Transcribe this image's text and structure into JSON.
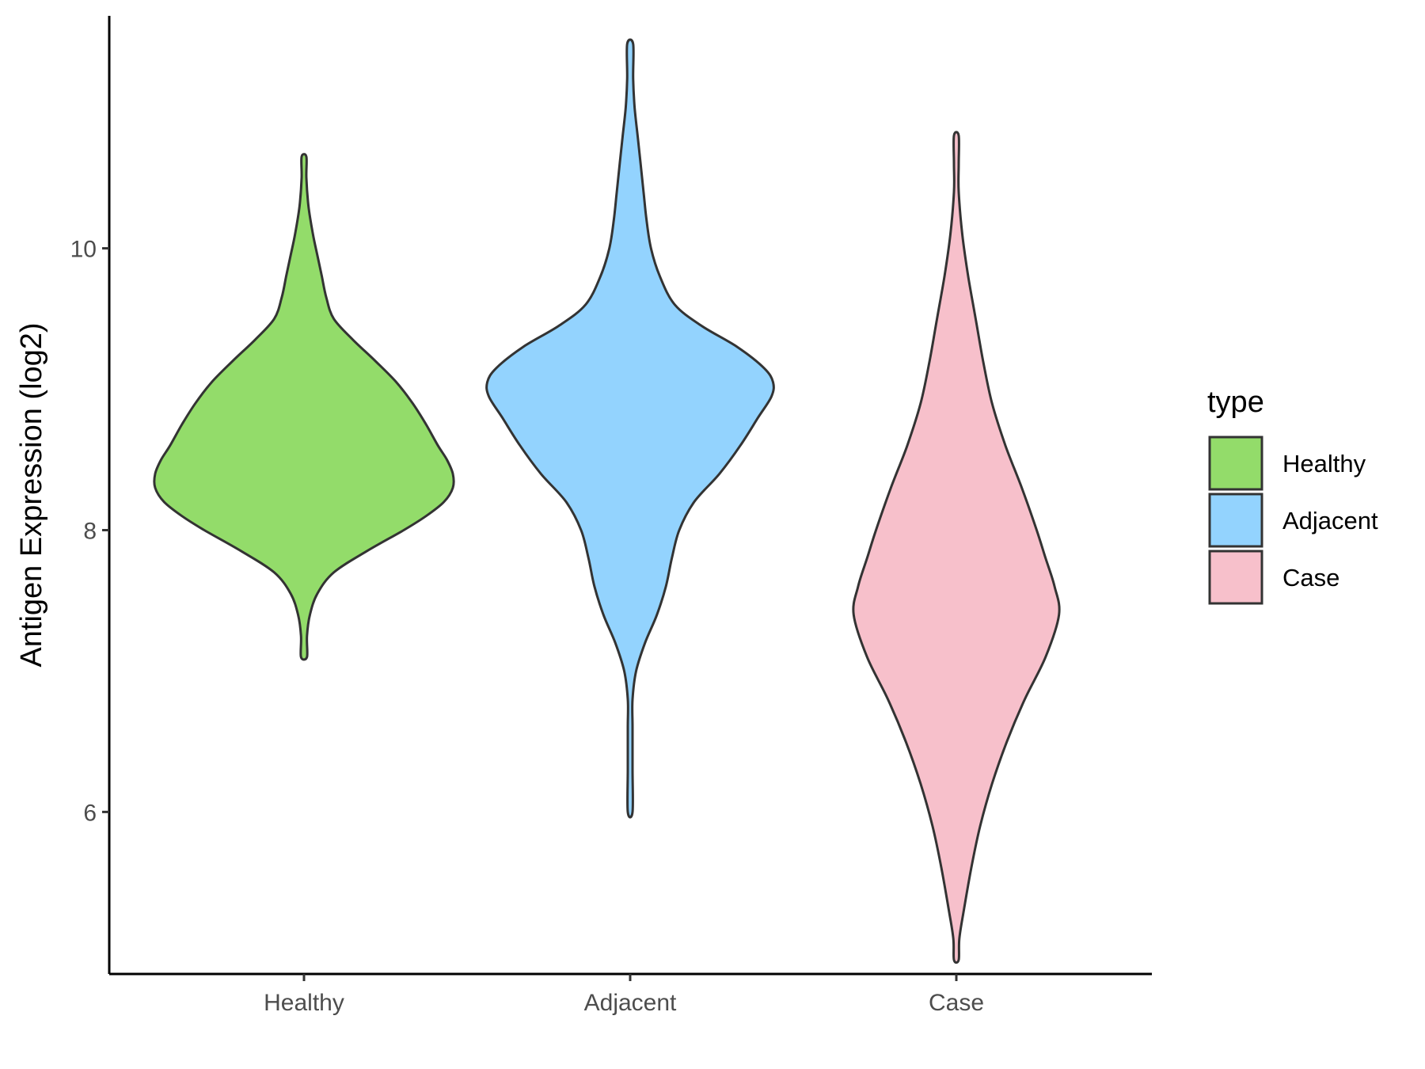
{
  "chart_data": {
    "type": "violin",
    "title": "",
    "xlabel": "",
    "ylabel": "Antigen Expression (log2)",
    "categories": [
      "Healthy",
      "Adjacent",
      "Case"
    ],
    "yticks": [
      "6",
      "8",
      "10"
    ],
    "ylim": [
      4.85,
      11.65
    ],
    "grid": false,
    "legend": {
      "title": "type",
      "position": "right",
      "entries": [
        "Healthy",
        "Adjacent",
        "Case"
      ]
    },
    "series": [
      {
        "category": "Healthy",
        "color": "#93DC6A",
        "min": 7.1,
        "max": 10.65,
        "density_profile": [
          [
            7.1,
            0.02
          ],
          [
            7.25,
            0.02
          ],
          [
            7.4,
            0.04
          ],
          [
            7.55,
            0.09
          ],
          [
            7.7,
            0.2
          ],
          [
            7.85,
            0.42
          ],
          [
            8.0,
            0.67
          ],
          [
            8.1,
            0.82
          ],
          [
            8.2,
            0.94
          ],
          [
            8.3,
            1.0
          ],
          [
            8.4,
            1.0
          ],
          [
            8.5,
            0.96
          ],
          [
            8.6,
            0.9
          ],
          [
            8.75,
            0.82
          ],
          [
            8.9,
            0.73
          ],
          [
            9.05,
            0.62
          ],
          [
            9.2,
            0.48
          ],
          [
            9.35,
            0.33
          ],
          [
            9.5,
            0.2
          ],
          [
            9.65,
            0.15
          ],
          [
            9.8,
            0.12
          ],
          [
            9.95,
            0.09
          ],
          [
            10.1,
            0.06
          ],
          [
            10.3,
            0.03
          ],
          [
            10.5,
            0.015
          ],
          [
            10.65,
            0.015
          ]
        ]
      },
      {
        "category": "Adjacent",
        "color": "#93D3FE",
        "min": 6.0,
        "max": 11.45,
        "density_profile": [
          [
            6.0,
            0.01
          ],
          [
            6.3,
            0.01
          ],
          [
            6.6,
            0.01
          ],
          [
            6.8,
            0.015
          ],
          [
            7.0,
            0.04
          ],
          [
            7.2,
            0.1
          ],
          [
            7.4,
            0.18
          ],
          [
            7.6,
            0.24
          ],
          [
            7.8,
            0.28
          ],
          [
            8.0,
            0.33
          ],
          [
            8.2,
            0.43
          ],
          [
            8.4,
            0.6
          ],
          [
            8.6,
            0.74
          ],
          [
            8.8,
            0.86
          ],
          [
            8.95,
            0.95
          ],
          [
            9.05,
            0.96
          ],
          [
            9.15,
            0.9
          ],
          [
            9.3,
            0.72
          ],
          [
            9.45,
            0.48
          ],
          [
            9.6,
            0.3
          ],
          [
            9.8,
            0.2
          ],
          [
            10.0,
            0.14
          ],
          [
            10.2,
            0.11
          ],
          [
            10.4,
            0.09
          ],
          [
            10.6,
            0.07
          ],
          [
            10.8,
            0.05
          ],
          [
            11.0,
            0.03
          ],
          [
            11.2,
            0.02
          ],
          [
            11.45,
            0.02
          ]
        ]
      },
      {
        "category": "Case",
        "color": "#F7C0CB",
        "min": 4.95,
        "max": 10.8,
        "density_profile": [
          [
            4.95,
            0.0
          ],
          [
            5.1,
            0.02
          ],
          [
            5.3,
            0.05
          ],
          [
            5.6,
            0.1
          ],
          [
            5.9,
            0.16
          ],
          [
            6.2,
            0.24
          ],
          [
            6.5,
            0.34
          ],
          [
            6.8,
            0.46
          ],
          [
            7.1,
            0.6
          ],
          [
            7.4,
            0.69
          ],
          [
            7.6,
            0.66
          ],
          [
            7.8,
            0.6
          ],
          [
            8.0,
            0.54
          ],
          [
            8.3,
            0.44
          ],
          [
            8.6,
            0.33
          ],
          [
            8.9,
            0.24
          ],
          [
            9.2,
            0.18
          ],
          [
            9.5,
            0.13
          ],
          [
            9.8,
            0.08
          ],
          [
            10.1,
            0.04
          ],
          [
            10.4,
            0.01
          ],
          [
            10.6,
            0.01
          ],
          [
            10.8,
            0.01
          ]
        ]
      }
    ]
  }
}
